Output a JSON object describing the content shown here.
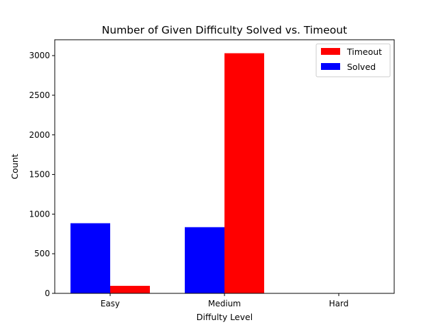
{
  "chart_data": {
    "type": "bar",
    "title": "Number of Given Difficulty Solved vs. Timeout",
    "xlabel": "Diffulty Level",
    "ylabel": "Count",
    "categories": [
      "Easy",
      "Medium",
      "Hard"
    ],
    "series": [
      {
        "name": "Solved",
        "color": "#0000ff",
        "values": [
          885,
          835,
          0
        ]
      },
      {
        "name": "Timeout",
        "color": "#ff0000",
        "values": [
          95,
          3030,
          0
        ]
      }
    ],
    "legend_order": [
      "Timeout",
      "Solved"
    ],
    "legend_position": "top-right",
    "ylim": [
      0,
      3200
    ],
    "yticks": [
      0,
      500,
      1000,
      1500,
      2000,
      2500,
      3000
    ],
    "grid": false
  }
}
